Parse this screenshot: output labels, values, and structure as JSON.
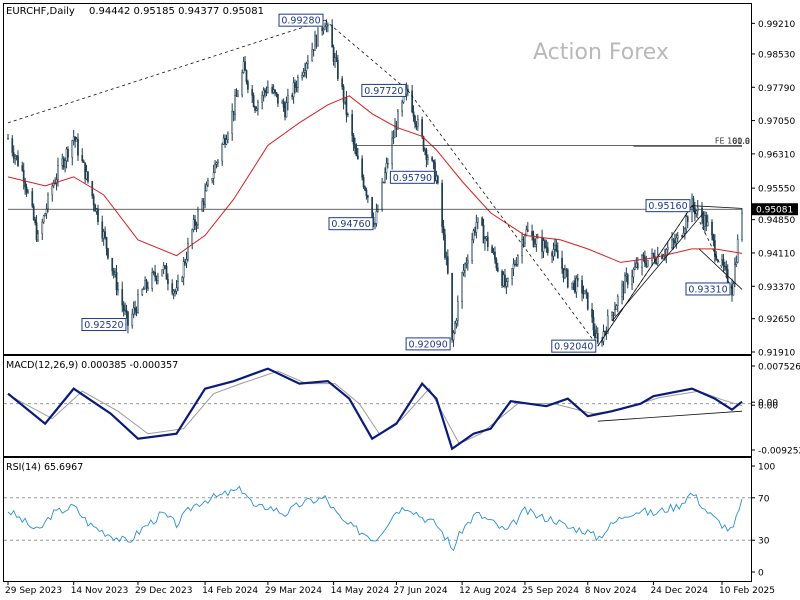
{
  "header": {
    "symbol": "EURCHF,Daily",
    "ohlc": "0.94442 0.95185 0.94377 0.95081"
  },
  "watermark": "Action Forex",
  "colors": {
    "candle": "#1e3d4f",
    "ma": "#d62020",
    "macd": "#0a1a7a",
    "signal": "#9c9c9c",
    "rsi": "#2b8fd6",
    "grid_dash": "#999999",
    "price_box_bg": "#1e3a8a"
  },
  "chart_data": [
    {
      "type": "candlestick",
      "panel": "price",
      "ylim": [
        0.9191,
        0.99284
      ],
      "y_ticks": [
        "0.99210",
        "0.98530",
        "0.97790",
        "0.97050",
        "0.96310",
        "0.95550",
        "0.94850",
        "0.94110",
        "0.93370",
        "0.92650",
        "0.91910"
      ],
      "x_ticks": [
        "29 Sep 2023",
        "14 Nov 2023",
        "29 Dec 2023",
        "14 Feb 2024",
        "29 Mar 2024",
        "14 May 2024",
        "27 Jun 2024",
        "12 Aug 2024",
        "25 Sep 2024",
        "8 Nov 2024",
        "24 Dec 2024",
        "10 Feb 2025"
      ],
      "current_price": "0.95081",
      "close_path": [
        [
          "2023-09-29",
          0.9665
        ],
        [
          "2023-10-10",
          0.9585
        ],
        [
          "2023-10-20",
          0.944
        ],
        [
          "2023-10-30",
          0.956
        ],
        [
          "2023-11-14",
          0.967
        ],
        [
          "2023-11-25",
          0.956
        ],
        [
          "2023-12-05",
          0.945
        ],
        [
          "2023-12-15",
          0.933
        ],
        [
          "2023-12-22",
          0.9252
        ],
        [
          "2024-01-02",
          0.933
        ],
        [
          "2024-01-15",
          0.938
        ],
        [
          "2024-01-25",
          0.932
        ],
        [
          "2024-02-05",
          0.946
        ],
        [
          "2024-02-14",
          0.954
        ],
        [
          "2024-02-25",
          0.964
        ],
        [
          "2024-03-05",
          0.973
        ],
        [
          "2024-03-12",
          0.982
        ],
        [
          "2024-03-20",
          0.974
        ],
        [
          "2024-03-29",
          0.978
        ],
        [
          "2024-04-10",
          0.973
        ],
        [
          "2024-04-22",
          0.982
        ],
        [
          "2024-05-01",
          0.988
        ],
        [
          "2024-05-08",
          0.9928
        ],
        [
          "2024-05-20",
          0.977
        ],
        [
          "2024-05-30",
          0.962
        ],
        [
          "2024-06-07",
          0.954
        ],
        [
          "2024-06-12",
          0.9476
        ],
        [
          "2024-06-20",
          0.96
        ],
        [
          "2024-06-27",
          0.97
        ],
        [
          "2024-07-05",
          0.9772
        ],
        [
          "2024-07-15",
          0.966
        ],
        [
          "2024-07-25",
          0.9579
        ],
        [
          "2024-08-02",
          0.936
        ],
        [
          "2024-08-05",
          0.9209
        ],
        [
          "2024-08-12",
          0.936
        ],
        [
          "2024-08-22",
          0.948
        ],
        [
          "2024-09-01",
          0.942
        ],
        [
          "2024-09-12",
          0.933
        ],
        [
          "2024-09-25",
          0.946
        ],
        [
          "2024-10-05",
          0.943
        ],
        [
          "2024-10-15",
          0.942
        ],
        [
          "2024-10-25",
          0.935
        ],
        [
          "2024-11-04",
          0.933
        ],
        [
          "2024-11-08",
          0.93
        ],
        [
          "2024-11-15",
          0.9204
        ],
        [
          "2024-11-25",
          0.928
        ],
        [
          "2024-12-05",
          0.935
        ],
        [
          "2024-12-15",
          0.939
        ],
        [
          "2024-12-24",
          0.94
        ],
        [
          "2025-01-03",
          0.942
        ],
        [
          "2025-01-10",
          0.944
        ],
        [
          "2025-01-20",
          0.9516
        ],
        [
          "2025-01-30",
          0.948
        ],
        [
          "2025-02-05",
          0.942
        ],
        [
          "2025-02-10",
          0.938
        ],
        [
          "2025-02-17",
          0.9331
        ],
        [
          "2025-02-24",
          0.9508
        ]
      ],
      "moving_average": [
        [
          "2023-09-29",
          0.958
        ],
        [
          "2023-10-25",
          0.956
        ],
        [
          "2023-11-14",
          0.958
        ],
        [
          "2023-12-05",
          0.954
        ],
        [
          "2023-12-29",
          0.944
        ],
        [
          "2024-01-25",
          0.9405
        ],
        [
          "2024-02-14",
          0.945
        ],
        [
          "2024-03-05",
          0.953
        ],
        [
          "2024-03-29",
          0.965
        ],
        [
          "2024-04-20",
          0.97
        ],
        [
          "2024-05-10",
          0.974
        ],
        [
          "2024-05-25",
          0.976
        ],
        [
          "2024-06-10",
          0.972
        ],
        [
          "2024-06-27",
          0.969
        ],
        [
          "2024-07-15",
          0.967
        ],
        [
          "2024-07-25",
          0.964
        ],
        [
          "2024-08-12",
          0.957
        ],
        [
          "2024-09-01",
          0.95
        ],
        [
          "2024-09-25",
          0.945
        ],
        [
          "2024-10-20",
          0.944
        ],
        [
          "2024-11-08",
          0.942
        ],
        [
          "2024-12-01",
          0.939
        ],
        [
          "2024-12-24",
          0.94
        ],
        [
          "2025-01-20",
          0.942
        ],
        [
          "2025-02-05",
          0.942
        ],
        [
          "2025-02-24",
          0.941
        ]
      ],
      "trendlines": [
        {
          "from": [
            "2023-09-29",
            0.97
          ],
          "to": [
            "2024-05-08",
            0.9928
          ],
          "style": "dashed"
        },
        {
          "from": [
            "2024-05-08",
            0.9928
          ],
          "to": [
            "2024-07-05",
            0.9772
          ],
          "style": "dashed"
        },
        {
          "from": [
            "2024-07-05",
            0.9772
          ],
          "to": [
            "2024-11-15",
            0.9204
          ],
          "style": "dashed"
        },
        {
          "from": [
            "2024-11-15",
            0.9204
          ],
          "to": [
            "2025-01-20",
            0.9516
          ],
          "style": "dashed"
        },
        {
          "from": [
            "2025-01-20",
            0.9516
          ],
          "to": [
            "2025-02-17",
            0.9331
          ],
          "style": "dashed"
        },
        {
          "from": [
            "2024-11-15",
            0.9204
          ],
          "to": [
            "2025-01-20",
            0.9516
          ],
          "style": "solid"
        },
        {
          "from": [
            "2024-11-25",
            0.926
          ],
          "to": [
            "2025-01-28",
            0.95
          ],
          "style": "solid"
        },
        {
          "from": [
            "2025-01-20",
            0.9516
          ],
          "to": [
            "2025-02-24",
            0.951
          ],
          "style": "solid"
        },
        {
          "from": [
            "2025-01-25",
            0.942
          ],
          "to": [
            "2025-02-24",
            0.933
          ],
          "style": "solid"
        }
      ],
      "horizontal_lines": [
        {
          "price": 0.965,
          "label": "FE 100.0",
          "from": "2024-05-30",
          "to": "2025-02-24"
        },
        {
          "price": 0.9648,
          "label": "61.8",
          "from": "2024-12-10",
          "to": "2025-02-24"
        },
        {
          "price": 0.95081,
          "label": "",
          "from": "2023-09-29",
          "to": "2025-02-24"
        }
      ],
      "annotations": [
        {
          "text": "0.99280",
          "date": "2024-05-08",
          "price": 0.9928,
          "anchor": "right"
        },
        {
          "text": "0.97720",
          "date": "2024-07-05",
          "price": 0.9772,
          "anchor": "right"
        },
        {
          "text": "0.95790",
          "date": "2024-07-25",
          "price": 0.9579,
          "anchor": "right"
        },
        {
          "text": "0.94760",
          "date": "2024-06-12",
          "price": 0.9476,
          "anchor": "right"
        },
        {
          "text": "0.92520",
          "date": "2023-12-22",
          "price": 0.9252,
          "anchor": "right"
        },
        {
          "text": "0.92090",
          "date": "2024-08-05",
          "price": 0.9209,
          "anchor": "right"
        },
        {
          "text": "0.92040",
          "date": "2024-11-15",
          "price": 0.9204,
          "anchor": "right"
        },
        {
          "text": "0.95160",
          "date": "2025-01-20",
          "price": 0.9516,
          "anchor": "right"
        },
        {
          "text": "0.93310",
          "date": "2025-02-17",
          "price": 0.9331,
          "anchor": "right"
        }
      ]
    },
    {
      "type": "line",
      "panel": "macd",
      "title": "MACD(12,26,9) 0.000385 -0.000357",
      "ylim": [
        -0.009252,
        0.007526
      ],
      "y_ticks": [
        "0.007526",
        "0.00",
        "0.00",
        "-0.009252"
      ],
      "series": [
        {
          "name": "MACD",
          "values": [
            [
              "2023-09-29",
              0.002
            ],
            [
              "2023-10-25",
              -0.004
            ],
            [
              "2023-11-14",
              0.003
            ],
            [
              "2023-12-10",
              -0.002
            ],
            [
              "2023-12-29",
              -0.007
            ],
            [
              "2024-01-25",
              -0.006
            ],
            [
              "2024-02-14",
              0.003
            ],
            [
              "2024-03-05",
              0.0045
            ],
            [
              "2024-03-29",
              0.007
            ],
            [
              "2024-04-20",
              0.004
            ],
            [
              "2024-05-10",
              0.0045
            ],
            [
              "2024-05-25",
              0.001
            ],
            [
              "2024-06-10",
              -0.007
            ],
            [
              "2024-06-27",
              -0.004
            ],
            [
              "2024-07-15",
              0.004
            ],
            [
              "2024-07-25",
              0.001
            ],
            [
              "2024-08-05",
              -0.009
            ],
            [
              "2024-08-20",
              -0.006
            ],
            [
              "2024-09-01",
              -0.005
            ],
            [
              "2024-09-15",
              0.0005
            ],
            [
              "2024-10-10",
              -0.0005
            ],
            [
              "2024-10-25",
              0.001
            ],
            [
              "2024-11-08",
              -0.0025
            ],
            [
              "2024-11-25",
              -0.0015
            ],
            [
              "2024-12-15",
              0.0
            ],
            [
              "2024-12-24",
              0.0015
            ],
            [
              "2025-01-20",
              0.003
            ],
            [
              "2025-02-05",
              0.001
            ],
            [
              "2025-02-17",
              -0.0012
            ],
            [
              "2025-02-24",
              0.0004
            ]
          ]
        },
        {
          "name": "Signal",
          "values": [
            [
              "2023-09-29",
              0.0018
            ],
            [
              "2023-10-30",
              -0.003
            ],
            [
              "2023-11-20",
              0.0025
            ],
            [
              "2023-12-15",
              -0.0015
            ],
            [
              "2024-01-05",
              -0.006
            ],
            [
              "2024-01-30",
              -0.005
            ],
            [
              "2024-02-20",
              0.002
            ],
            [
              "2024-03-10",
              0.004
            ],
            [
              "2024-04-05",
              0.0065
            ],
            [
              "2024-04-25",
              0.004
            ],
            [
              "2024-05-15",
              0.004
            ],
            [
              "2024-06-01",
              0.0
            ],
            [
              "2024-06-15",
              -0.006
            ],
            [
              "2024-07-01",
              -0.003
            ],
            [
              "2024-07-20",
              0.003
            ],
            [
              "2024-08-10",
              -0.008
            ],
            [
              "2024-08-25",
              -0.006
            ],
            [
              "2024-09-20",
              0.0
            ],
            [
              "2024-10-15",
              0.0
            ],
            [
              "2024-11-12",
              -0.002
            ],
            [
              "2024-12-01",
              -0.0012
            ],
            [
              "2024-12-28",
              0.0012
            ],
            [
              "2025-01-25",
              0.0025
            ],
            [
              "2025-02-10",
              0.0008
            ],
            [
              "2025-02-24",
              -0.0004
            ]
          ]
        }
      ],
      "trendlines": [
        {
          "from": [
            "2024-11-15",
            -0.0035
          ],
          "to": [
            "2025-02-24",
            -0.0015
          ]
        }
      ]
    },
    {
      "type": "line",
      "panel": "rsi",
      "title": "RSI(14) 65.6967",
      "ylim": [
        0,
        100
      ],
      "y_ticks": [
        "100",
        "70",
        "30",
        "0"
      ],
      "levels": [
        70,
        30
      ],
      "series": [
        {
          "name": "RSI",
          "values": [
            [
              "2023-09-29",
              58
            ],
            [
              "2023-10-10",
              48
            ],
            [
              "2023-10-20",
              38
            ],
            [
              "2023-10-30",
              55
            ],
            [
              "2023-11-14",
              62
            ],
            [
              "2023-11-25",
              45
            ],
            [
              "2023-12-05",
              38
            ],
            [
              "2023-12-15",
              32
            ],
            [
              "2023-12-22",
              28
            ],
            [
              "2024-01-02",
              42
            ],
            [
              "2024-01-15",
              55
            ],
            [
              "2024-01-25",
              45
            ],
            [
              "2024-02-05",
              62
            ],
            [
              "2024-02-14",
              68
            ],
            [
              "2024-02-25",
              72
            ],
            [
              "2024-03-05",
              76
            ],
            [
              "2024-03-12",
              78
            ],
            [
              "2024-03-20",
              60
            ],
            [
              "2024-03-29",
              62
            ],
            [
              "2024-04-10",
              55
            ],
            [
              "2024-04-22",
              65
            ],
            [
              "2024-05-01",
              68
            ],
            [
              "2024-05-08",
              70
            ],
            [
              "2024-05-20",
              48
            ],
            [
              "2024-05-30",
              40
            ],
            [
              "2024-06-07",
              35
            ],
            [
              "2024-06-12",
              30
            ],
            [
              "2024-06-20",
              45
            ],
            [
              "2024-06-27",
              58
            ],
            [
              "2024-07-05",
              62
            ],
            [
              "2024-07-15",
              52
            ],
            [
              "2024-07-25",
              45
            ],
            [
              "2024-08-02",
              30
            ],
            [
              "2024-08-05",
              20
            ],
            [
              "2024-08-12",
              40
            ],
            [
              "2024-08-22",
              55
            ],
            [
              "2024-09-01",
              48
            ],
            [
              "2024-09-12",
              38
            ],
            [
              "2024-09-25",
              58
            ],
            [
              "2024-10-05",
              52
            ],
            [
              "2024-10-15",
              50
            ],
            [
              "2024-10-25",
              42
            ],
            [
              "2024-11-04",
              40
            ],
            [
              "2024-11-08",
              38
            ],
            [
              "2024-11-15",
              32
            ],
            [
              "2024-11-25",
              45
            ],
            [
              "2024-12-05",
              55
            ],
            [
              "2024-12-15",
              58
            ],
            [
              "2024-12-24",
              55
            ],
            [
              "2025-01-03",
              60
            ],
            [
              "2025-01-10",
              62
            ],
            [
              "2025-01-20",
              75
            ],
            [
              "2025-01-30",
              58
            ],
            [
              "2025-02-05",
              50
            ],
            [
              "2025-02-10",
              45
            ],
            [
              "2025-02-17",
              38
            ],
            [
              "2025-02-24",
              66
            ]
          ]
        }
      ]
    }
  ]
}
